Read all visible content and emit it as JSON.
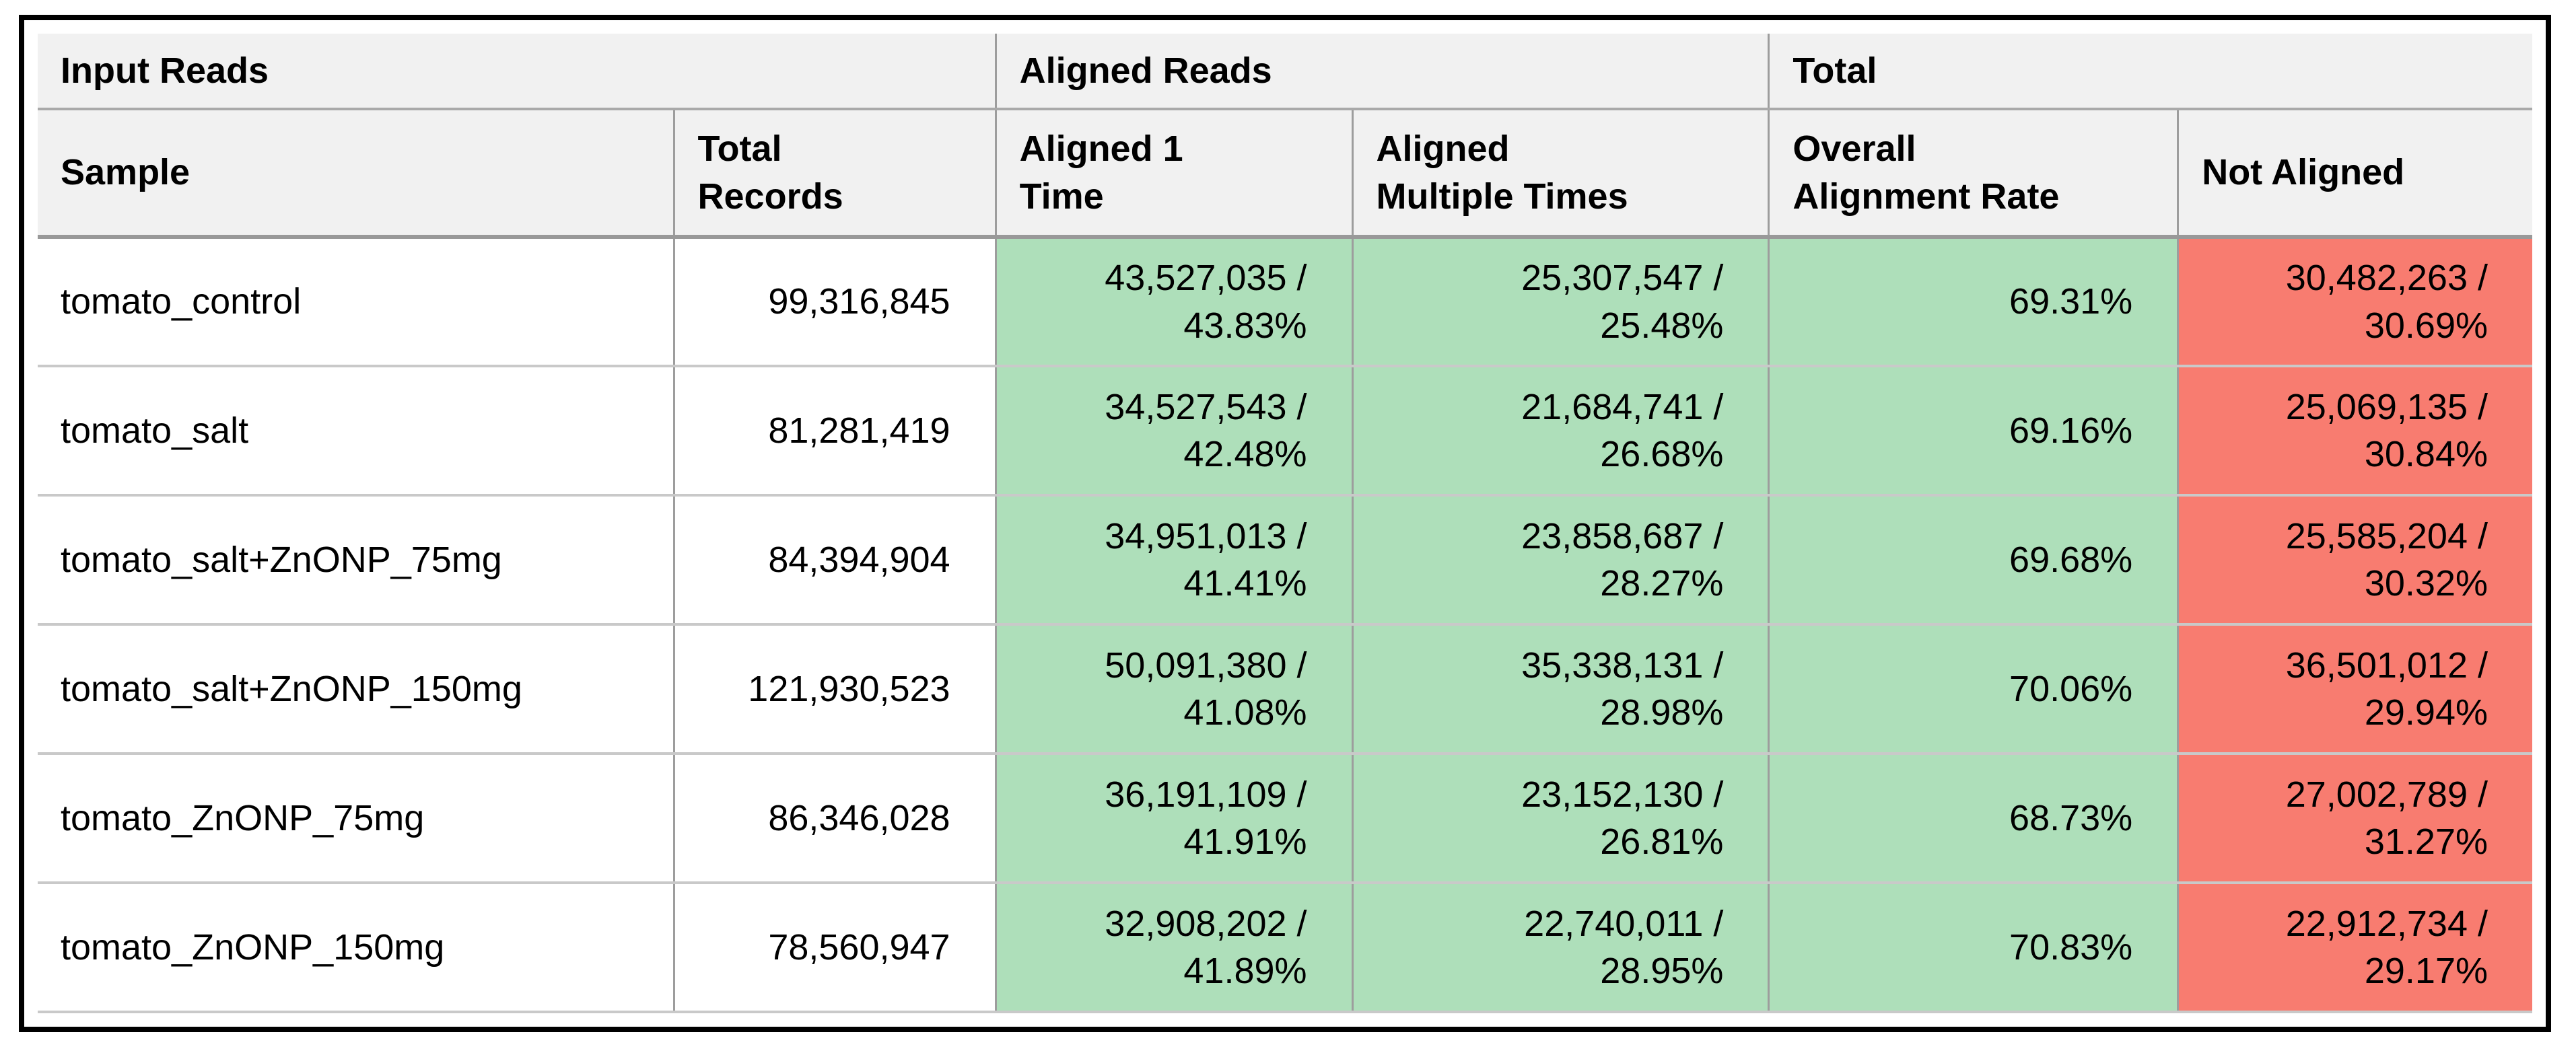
{
  "colors": {
    "green_cell": "#aedfba",
    "red_cell": "#f87c70",
    "header_bg": "#f1f1f1",
    "grid_line": "#9d9d9d",
    "row_line": "#c9c9c9",
    "outer_border": "#000000"
  },
  "table": {
    "header": {
      "groups": [
        {
          "label": "Input Reads"
        },
        {
          "label": "Aligned Reads"
        },
        {
          "label": "Total"
        }
      ],
      "columns": [
        {
          "label": [
            "Sample"
          ]
        },
        {
          "label": [
            "Total",
            "Records"
          ]
        },
        {
          "label": [
            "Aligned 1",
            "Time"
          ]
        },
        {
          "label": [
            "Aligned",
            "Multiple Times"
          ]
        },
        {
          "label": [
            "Overall",
            "Alignment Rate"
          ]
        },
        {
          "label": [
            "Not Aligned"
          ]
        }
      ]
    },
    "rows": [
      {
        "sample": "tomato_control",
        "total_records": "99,316,845",
        "aligned_one_time": [
          "43,527,035 /",
          "43.83%"
        ],
        "aligned_multiple_times": [
          "25,307,547 /",
          "25.48%"
        ],
        "overall_alignment_rate": "69.31%",
        "not_aligned": [
          "30,482,263 /",
          "30.69%"
        ]
      },
      {
        "sample": "tomato_salt",
        "total_records": "81,281,419",
        "aligned_one_time": [
          "34,527,543 /",
          "42.48%"
        ],
        "aligned_multiple_times": [
          "21,684,741 /",
          "26.68%"
        ],
        "overall_alignment_rate": "69.16%",
        "not_aligned": [
          "25,069,135 /",
          "30.84%"
        ]
      },
      {
        "sample": "tomato_salt+ZnONP_75mg",
        "total_records": "84,394,904",
        "aligned_one_time": [
          "34,951,013 /",
          "41.41%"
        ],
        "aligned_multiple_times": [
          "23,858,687 /",
          "28.27%"
        ],
        "overall_alignment_rate": "69.68%",
        "not_aligned": [
          "25,585,204 /",
          "30.32%"
        ]
      },
      {
        "sample": "tomato_salt+ZnONP_150mg",
        "total_records": "121,930,523",
        "aligned_one_time": [
          "50,091,380 /",
          "41.08%"
        ],
        "aligned_multiple_times": [
          "35,338,131 /",
          "28.98%"
        ],
        "overall_alignment_rate": "70.06%",
        "not_aligned": [
          "36,501,012 /",
          "29.94%"
        ]
      },
      {
        "sample": "tomato_ZnONP_75mg",
        "total_records": "86,346,028",
        "aligned_one_time": [
          "36,191,109 /",
          "41.91%"
        ],
        "aligned_multiple_times": [
          "23,152,130 /",
          "26.81%"
        ],
        "overall_alignment_rate": "68.73%",
        "not_aligned": [
          "27,002,789 /",
          "31.27%"
        ]
      },
      {
        "sample": "tomato_ZnONP_150mg",
        "total_records": "78,560,947",
        "aligned_one_time": [
          "32,908,202 /",
          "41.89%"
        ],
        "aligned_multiple_times": [
          "22,740,011 /",
          "28.95%"
        ],
        "overall_alignment_rate": "70.83%",
        "not_aligned": [
          "22,912,734 /",
          "29.17%"
        ]
      }
    ]
  },
  "chart_data": {
    "type": "table",
    "column_groups": [
      {
        "label": "Input Reads",
        "span": 2
      },
      {
        "label": "Aligned Reads",
        "span": 2
      },
      {
        "label": "Total",
        "span": 2
      }
    ],
    "columns": [
      "Sample",
      "Total Records",
      "Aligned 1 Time",
      "Aligned Multiple Times",
      "Overall Alignment Rate",
      "Not Aligned"
    ],
    "rows": [
      [
        "tomato_control",
        "99,316,845",
        "43,527,035 / 43.83%",
        "25,307,547 / 25.48%",
        "69.31%",
        "30,482,263 / 30.69%"
      ],
      [
        "tomato_salt",
        "81,281,419",
        "34,527,543 / 42.48%",
        "21,684,741 / 26.68%",
        "69.16%",
        "25,069,135 / 30.84%"
      ],
      [
        "tomato_salt+ZnONP_75mg",
        "84,394,904",
        "34,951,013 / 41.41%",
        "23,858,687 / 28.27%",
        "69.68%",
        "25,585,204 / 30.32%"
      ],
      [
        "tomato_salt+ZnONP_150mg",
        "121,930,523",
        "50,091,380 / 41.08%",
        "35,338,131 / 28.98%",
        "70.06%",
        "36,501,012 / 29.94%"
      ],
      [
        "tomato_ZnONP_75mg",
        "86,346,028",
        "36,191,109 / 41.91%",
        "23,152,130 / 26.81%",
        "68.73%",
        "27,002,789 / 31.27%"
      ],
      [
        "tomato_ZnONP_150mg",
        "78,560,947",
        "32,908,202 / 41.89%",
        "22,740,011 / 28.95%",
        "70.83%",
        "22,912,734 / 29.17%"
      ]
    ],
    "numeric": {
      "total_records": [
        99316845,
        81281419,
        84394904,
        121930523,
        86346028,
        78560947
      ],
      "aligned_one_time_count": [
        43527035,
        34527543,
        34951013,
        50091380,
        36191109,
        32908202
      ],
      "aligned_one_time_pct": [
        43.83,
        42.48,
        41.41,
        41.08,
        41.91,
        41.89
      ],
      "aligned_multiple_count": [
        25307547,
        21684741,
        23858687,
        35338131,
        23152130,
        22740011
      ],
      "aligned_multiple_pct": [
        25.48,
        26.68,
        28.27,
        28.98,
        26.81,
        28.95
      ],
      "overall_alignment_rate_pct": [
        69.31,
        69.16,
        69.68,
        70.06,
        68.73,
        70.83
      ],
      "not_aligned_count": [
        30482263,
        25069135,
        25585204,
        36501012,
        27002789,
        22912734
      ],
      "not_aligned_pct": [
        30.69,
        30.84,
        30.32,
        29.94,
        31.27,
        29.17
      ]
    },
    "legend_position": "none",
    "grid": true
  }
}
